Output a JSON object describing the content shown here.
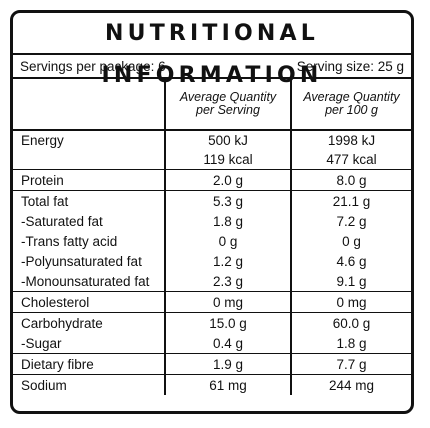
{
  "title": "NUTRITIONAL INFORMATION",
  "servings": {
    "per_package": "Servings per package: 6",
    "size": "Serving size: 25 g"
  },
  "columns": {
    "per_serving": [
      "Average Quantity",
      "per Serving"
    ],
    "per_100g": [
      "Average Quantity",
      "per 100 g"
    ]
  },
  "rows": [
    {
      "label": "Energy",
      "serving": [
        "500 kJ",
        "119 kcal"
      ],
      "per100": [
        "1998 kJ",
        "477 kcal"
      ]
    },
    {
      "label": "Protein",
      "serving": "2.0 g",
      "per100": "8.0 g"
    },
    {
      "label": "Total fat",
      "serving": "5.3 g",
      "per100": "21.1 g"
    },
    {
      "label": "-Saturated fat",
      "serving": "1.8 g",
      "per100": "7.2 g"
    },
    {
      "label": "-Trans fatty acid",
      "serving": "0 g",
      "per100": "0 g"
    },
    {
      "label": "-Polyunsaturated fat",
      "serving": "1.2 g",
      "per100": "4.6 g"
    },
    {
      "label": "-Monounsaturated fat",
      "serving": "2.3 g",
      "per100": "9.1 g"
    },
    {
      "label": "Cholesterol",
      "serving": "0 mg",
      "per100": "0 mg"
    },
    {
      "label": "Carbohydrate",
      "serving": "15.0 g",
      "per100": "60.0 g"
    },
    {
      "label": "-Sugar",
      "serving": "0.4 g",
      "per100": "1.8 g"
    },
    {
      "label": "Dietary fibre",
      "serving": "1.9 g",
      "per100": "7.7 g"
    },
    {
      "label": "Sodium",
      "serving": "61 mg",
      "per100": "244 mg"
    }
  ]
}
